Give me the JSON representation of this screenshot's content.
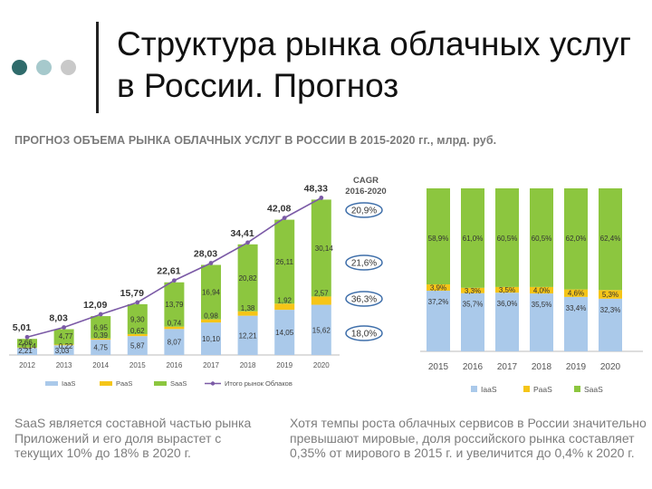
{
  "slide": {
    "title": "Структура рынка облачных услуг в России. Прогноз",
    "subtitle": "ПРОГНОЗ ОБЪЕМА РЫНКА ОБЛАЧНЫХ УСЛУГ В РОССИИ В 2015-2020 гг., млрд. руб.",
    "dot_colors": [
      "#2f6b6b",
      "#a6c9cc",
      "#c9c9c9"
    ],
    "caption_left": "SaaS является составной частью рынка Приложений и его доля вырастет с текущих 10% до 18% в 2020 г.",
    "caption_right": "Хотя темпы роста облачных сервисов в России значительно превышают мировые, доля российского рынка составляет 0,35% от мирового в 2015 г. и увеличится до 0,4% к 2020 г."
  },
  "colors": {
    "iaas": "#aac9ea",
    "paas": "#f5c518",
    "saas": "#8cc63f",
    "total": "#7b5aa6"
  },
  "chart_data": [
    {
      "type": "bar",
      "stacked": true,
      "categories": [
        "2012",
        "2013",
        "2014",
        "2015",
        "2016",
        "2017",
        "2018",
        "2019",
        "2020"
      ],
      "series": [
        {
          "name": "IaaS",
          "values": [
            2.21,
            3.03,
            4.75,
            5.87,
            8.07,
            10.1,
            12.21,
            14.05,
            15.62
          ],
          "labels": [
            "2,21",
            "3,03",
            "4,75",
            "5,87",
            "8,07",
            "10,10",
            "12,21",
            "14,05",
            "15,62"
          ]
        },
        {
          "name": "PaaS",
          "values": [
            0.14,
            0.22,
            0.39,
            0.62,
            0.74,
            0.98,
            1.38,
            1.92,
            2.57
          ],
          "labels": [
            "0,14",
            "0,22",
            "0,39",
            "0,62",
            "0,74",
            "0,98",
            "1,38",
            "1,92",
            "2,57"
          ]
        },
        {
          "name": "SaaS",
          "values": [
            2.66,
            4.77,
            6.95,
            9.3,
            13.79,
            16.94,
            20.82,
            26.11,
            30.14
          ],
          "labels": [
            "2,66",
            "4,77",
            "6,95",
            "9,30",
            "13,79",
            "16,94",
            "20,82",
            "26,11",
            "30,14"
          ]
        }
      ],
      "line": {
        "name": "Итого рынок Облаков",
        "values": [
          5.01,
          8.03,
          12.09,
          15.79,
          22.61,
          28.03,
          34.41,
          42.08,
          48.33
        ],
        "labels": [
          "5,01",
          "8,03",
          "12,09",
          "15,79",
          "22,61",
          "28,03",
          "34,41",
          "42,08",
          "48,33"
        ]
      },
      "ylim": [
        0,
        50
      ],
      "cagr": {
        "title": "CAGR 2016-2020",
        "values": [
          "20,9%",
          "21,6%",
          "36,3%",
          "18,0%"
        ]
      },
      "legend_position": "bottom"
    },
    {
      "type": "bar",
      "stacked": true,
      "percent": true,
      "categories": [
        "2015",
        "2016",
        "2017",
        "2018",
        "2019",
        "2020"
      ],
      "series": [
        {
          "name": "IaaS",
          "values": [
            37.2,
            35.7,
            36.0,
            35.5,
            33.4,
            32.3
          ],
          "labels": [
            "37,2%",
            "35,7%",
            "36,0%",
            "35,5%",
            "33,4%",
            "32,3%"
          ]
        },
        {
          "name": "PaaS",
          "values": [
            3.9,
            3.3,
            3.5,
            4.0,
            4.6,
            5.3
          ],
          "labels": [
            "3,9%",
            "3,3%",
            "3,5%",
            "4,0%",
            "4,6%",
            "5,3%"
          ]
        },
        {
          "name": "SaaS",
          "values": [
            58.9,
            61.0,
            60.5,
            60.5,
            62.0,
            62.4
          ],
          "labels": [
            "58,9%",
            "61,0%",
            "60,5%",
            "60,5%",
            "62,0%",
            "62,4%"
          ]
        }
      ],
      "ylim": [
        0,
        100
      ],
      "legend_position": "bottom"
    }
  ]
}
